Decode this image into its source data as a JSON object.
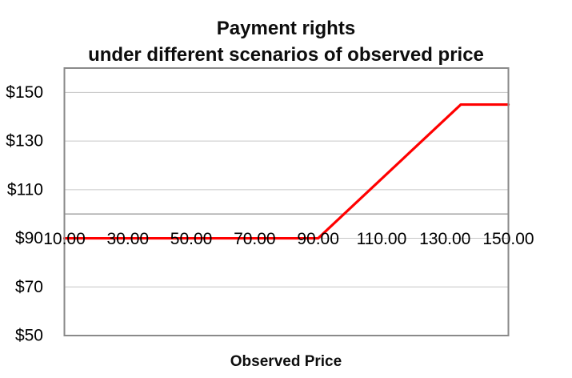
{
  "chart": {
    "title_line1": "Payment rights",
    "title_line2": "under different scenarios of observed price",
    "x_axis_title": "Observed Price"
  },
  "colors": {
    "series": "#FF0000",
    "gridline": "#C6C6C6",
    "plot_border": "#8A8A8A",
    "axis_line": "#9B9B9B",
    "text": "#000000",
    "background": "#FFFFFF"
  },
  "chart_data": {
    "type": "line",
    "title": "Payment rights under different scenarios of observed price",
    "xlabel": "Observed Price",
    "ylabel": "",
    "xlim": [
      10,
      150
    ],
    "ylim": [
      50,
      160
    ],
    "grid": true,
    "legend": "none",
    "x_ticks": [
      10,
      30,
      50,
      70,
      90,
      110,
      130,
      150
    ],
    "x_tick_labels": [
      "10.00",
      "30.00",
      "50.00",
      "70.00",
      "90.00",
      "110.00",
      "130.00",
      "150.00"
    ],
    "y_ticks": [
      50,
      70,
      90,
      110,
      130,
      150
    ],
    "y_tick_labels": [
      "$50",
      "$70",
      "$90",
      "$110",
      "$130",
      "$150"
    ],
    "x_axis_line_value": 100,
    "x_tick_label_value": 90,
    "series": [
      {
        "name": "Payment rights",
        "color": "#FF0000",
        "points": [
          [
            10,
            90
          ],
          [
            90,
            90
          ],
          [
            135,
            145
          ],
          [
            150,
            145
          ]
        ],
        "floor_value": 90,
        "cap_value": 145,
        "description": "Payment is flat at $90 for observed prices from 10 to 90, rises linearly to $145 at an observed price of about 135, then stays flat at $145 through 150."
      }
    ]
  }
}
